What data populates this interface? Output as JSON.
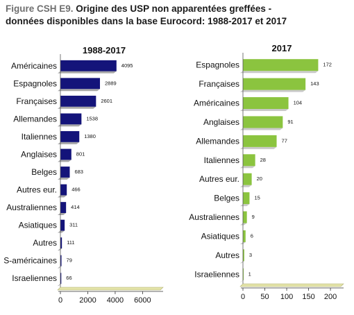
{
  "figure": {
    "title_prefix": "Figure CSH E9.",
    "title_line1": "Origine des USP non apparentées greffées -",
    "title_line2": "données disponibles dans la base Eurocord: 1988-2017  et 2017"
  },
  "chart_data": [
    {
      "type": "bar",
      "orientation": "horizontal",
      "title": "1988-2017",
      "categories": [
        "Américaines",
        "Espagnoles",
        "Françaises",
        "Allemandes",
        "Italiennes",
        "Anglaises",
        "Belges",
        "Autres eur.",
        "Australiennes",
        "Asiatiques",
        "Autres",
        "S-américaines",
        "Israeliennes"
      ],
      "values": [
        4095,
        2889,
        2601,
        1538,
        1380,
        801,
        683,
        466,
        414,
        311,
        111,
        79,
        66
      ],
      "xlim": [
        0,
        7500
      ],
      "xticks": [
        0,
        2000,
        4000,
        6000
      ],
      "color": "#14147a",
      "grid": false
    },
    {
      "type": "bar",
      "orientation": "horizontal",
      "title": "2017",
      "categories": [
        "Espagnoles",
        "Françaises",
        "Américaines",
        "Anglaises",
        "Allemandes",
        "Italiennes",
        "Autres eur.",
        "Belges",
        "Australiennes",
        "Asiatiques",
        "Autres",
        "Israeliennes"
      ],
      "values": [
        172,
        143,
        104,
        91,
        77,
        28,
        20,
        15,
        9,
        6,
        3,
        1
      ],
      "xlim": [
        0,
        230
      ],
      "xticks": [
        0,
        50,
        100,
        150,
        200
      ],
      "color": "#8bc43f",
      "grid": false
    }
  ]
}
